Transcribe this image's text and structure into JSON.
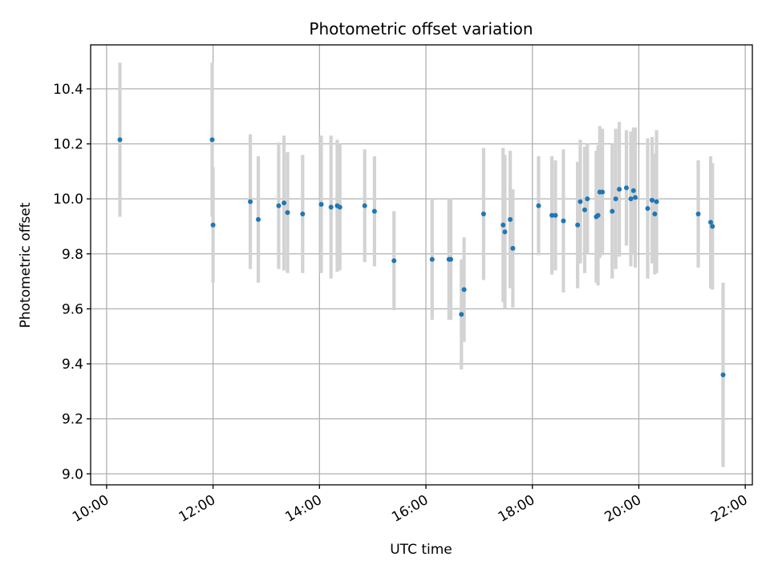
{
  "chart_data": {
    "type": "scatter",
    "title": "Photometric offset variation",
    "xlabel": "UTC time",
    "ylabel": "Photometric offset",
    "x_ticks": [
      "10:00",
      "12:00",
      "14:00",
      "16:00",
      "18:00",
      "20:00",
      "22:00"
    ],
    "y_ticks": [
      "9.0",
      "9.2",
      "9.4",
      "9.6",
      "9.8",
      "10.0",
      "10.2",
      "10.4"
    ],
    "xlim": [
      "09:42",
      "22:08"
    ],
    "ylim": [
      8.96,
      10.56
    ],
    "grid": true,
    "colors": {
      "points": "#1f77b4",
      "error_bars": "#d3d3d3",
      "grid": "#b0b0b0"
    },
    "series": [
      {
        "x": [
          "10:15",
          "11:59",
          "12:00",
          "12:42",
          "12:51",
          "13:14",
          "13:20",
          "13:24",
          "13:41",
          "14:02",
          "14:13",
          "14:20",
          "14:23",
          "14:51",
          "15:02",
          "15:24",
          "16:07",
          "16:26",
          "16:28",
          "16:40",
          "16:43",
          "17:05",
          "17:27",
          "17:29",
          "17:35",
          "17:38",
          "18:07",
          "18:22",
          "18:26",
          "18:35",
          "18:51",
          "18:54",
          "18:59",
          "19:02",
          "19:12",
          "19:14",
          "19:16",
          "19:19",
          "19:30",
          "19:34",
          "19:38",
          "19:46",
          "19:51",
          "19:54",
          "19:56",
          "20:10",
          "20:15",
          "20:18",
          "20:20",
          "21:07",
          "21:21",
          "21:23",
          "21:35"
        ],
        "y": [
          10.215,
          10.215,
          9.905,
          9.99,
          9.925,
          9.975,
          9.985,
          9.95,
          9.945,
          9.98,
          9.97,
          9.975,
          9.97,
          9.975,
          9.955,
          9.775,
          9.78,
          9.78,
          9.78,
          9.58,
          9.67,
          9.945,
          9.905,
          9.88,
          9.925,
          9.82,
          9.975,
          9.94,
          9.94,
          9.92,
          9.905,
          9.99,
          9.96,
          10.0,
          9.935,
          9.94,
          10.025,
          10.025,
          9.955,
          10.0,
          10.035,
          10.04,
          10.0,
          10.03,
          10.005,
          9.965,
          9.995,
          9.945,
          9.99,
          9.945,
          9.915,
          9.9,
          9.36
        ],
        "y_err": [
          0.28,
          0.28,
          0.21,
          0.245,
          0.23,
          0.23,
          0.245,
          0.22,
          0.215,
          0.25,
          0.26,
          0.24,
          0.23,
          0.205,
          0.2,
          0.18,
          0.22,
          0.22,
          0.22,
          0.2,
          0.19,
          0.24,
          0.28,
          0.28,
          0.25,
          0.215,
          0.18,
          0.215,
          0.2,
          0.26,
          0.23,
          0.225,
          0.23,
          0.2,
          0.24,
          0.255,
          0.24,
          0.23,
          0.245,
          0.255,
          0.245,
          0.21,
          0.245,
          0.23,
          0.255,
          0.255,
          0.23,
          0.22,
          0.26,
          0.195,
          0.24,
          0.23,
          0.335
        ]
      }
    ]
  }
}
